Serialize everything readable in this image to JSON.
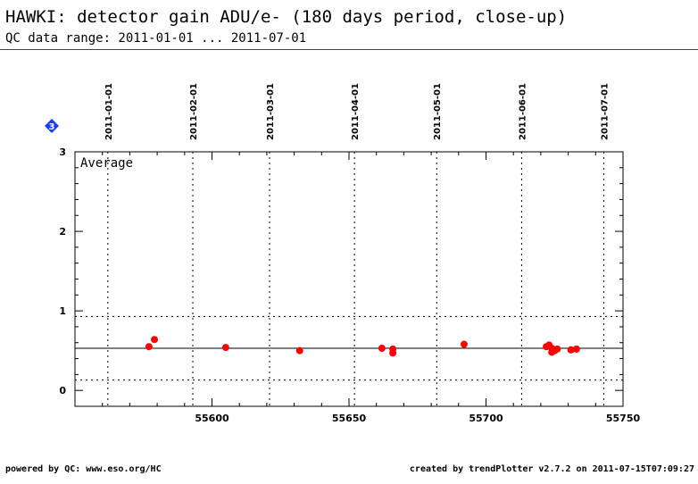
{
  "header": {
    "title": "HAWKI: detector gain ADU/e- (180 days period, close-up)",
    "subtitle": "QC data range: 2011-01-01 ... 2011-07-01"
  },
  "footer": {
    "left": "powered by QC: www.eso.org/HC",
    "right": "created by trendPlotter v2.7.2 on 2011-07-15T07:09:27"
  },
  "marker": {
    "text": "3",
    "color": "#1a3cff"
  },
  "chart_data": {
    "type": "scatter",
    "title": "HAWKI: detector gain ADU/e- (180 days period, close-up)",
    "panel_label": "Average",
    "xlim": [
      55550,
      55750
    ],
    "ylim": [
      -0.2,
      3
    ],
    "x_ticks": [
      55600,
      55650,
      55700,
      55750
    ],
    "y_ticks": [
      0,
      1,
      2,
      3
    ],
    "grid": false,
    "date_markers": [
      {
        "label": "2011-01-01",
        "x": 55562
      },
      {
        "label": "2011-02-01",
        "x": 55593
      },
      {
        "label": "2011-03-01",
        "x": 55621
      },
      {
        "label": "2011-04-01",
        "x": 55652
      },
      {
        "label": "2011-05-01",
        "x": 55682
      },
      {
        "label": "2011-06-01",
        "x": 55713
      },
      {
        "label": "2011-07-01",
        "x": 55743
      }
    ],
    "reference_lines": {
      "mean": 0.53,
      "upper": 0.93,
      "lower": 0.13
    },
    "series": [
      {
        "color": "#ff0000",
        "points": [
          [
            55577,
            0.55
          ],
          [
            55579,
            0.64
          ],
          [
            55605,
            0.54
          ],
          [
            55632,
            0.5
          ],
          [
            55662,
            0.53
          ],
          [
            55666,
            0.52
          ],
          [
            55666,
            0.47
          ],
          [
            55692,
            0.58
          ],
          [
            55722,
            0.55
          ],
          [
            55723,
            0.57
          ],
          [
            55724,
            0.48
          ],
          [
            55724,
            0.53
          ],
          [
            55725,
            0.5
          ],
          [
            55726,
            0.52
          ],
          [
            55731,
            0.51
          ],
          [
            55733,
            0.52
          ]
        ]
      }
    ]
  }
}
